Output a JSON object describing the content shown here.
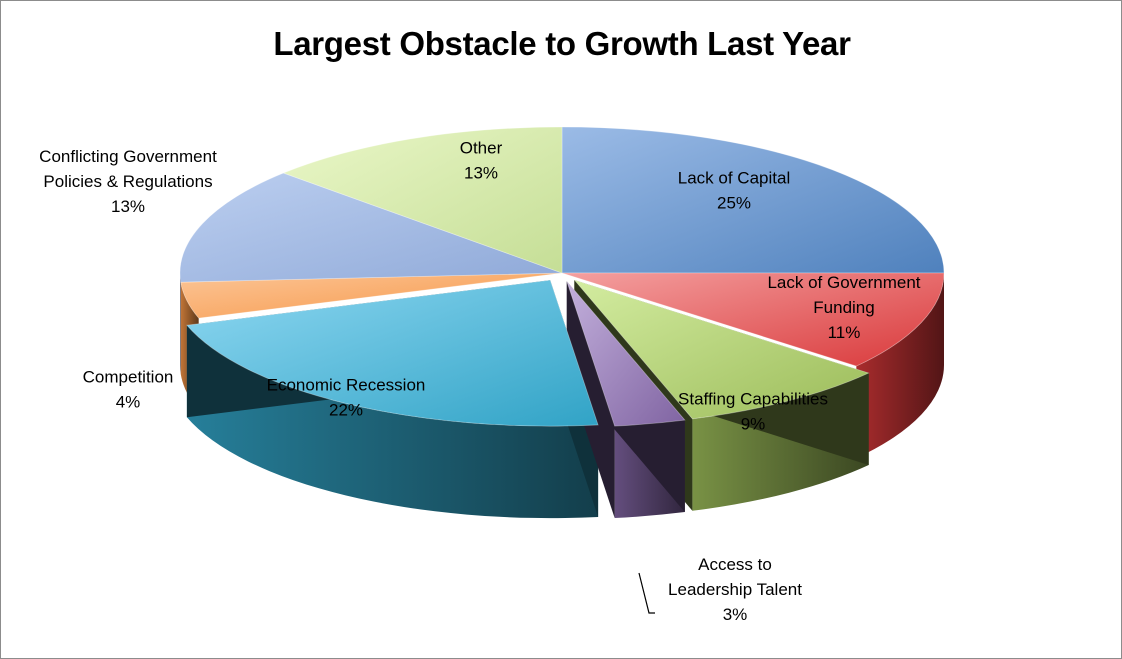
{
  "chart_data": {
    "type": "pie",
    "title": "Largest Obstacle to Growth Last Year",
    "series": [
      {
        "name": "",
        "values": [
          25,
          11,
          9,
          3,
          22,
          4,
          13,
          13
        ]
      }
    ],
    "slices": [
      {
        "label": [
          "Lack of Capital"
        ],
        "value": 25,
        "pct_text": "25%",
        "color": "#4f81bd",
        "light": "#9bbbe6"
      },
      {
        "label": [
          "Lack of Government",
          "Funding"
        ],
        "value": 11,
        "pct_text": "11%",
        "color": "#d9383a",
        "light": "#f4a0a0"
      },
      {
        "label": [
          "Staffing Capabilities"
        ],
        "value": 9,
        "pct_text": "9%",
        "color": "#9bbb59",
        "light": "#d3eca0"
      },
      {
        "label": [
          "Access to",
          "Leadership Talent"
        ],
        "value": 3,
        "pct_text": "3%",
        "color": "#8064a2",
        "light": "#c3b0dc"
      },
      {
        "label": [
          "Economic Recession"
        ],
        "value": 22,
        "pct_text": "22%",
        "color": "#31a3c6",
        "light": "#8fd8f2"
      },
      {
        "label": [
          "Competition"
        ],
        "value": 4,
        "pct_text": "4%",
        "color": "#f79646",
        "light": "#fbc596"
      },
      {
        "label": [
          "Conflicting Government",
          "Policies & Regulations"
        ],
        "value": 13,
        "pct_text": "13%",
        "color": "#8fa9d8",
        "light": "#bccff0"
      },
      {
        "label": [
          "Other"
        ],
        "value": 13,
        "pct_text": "13%",
        "color": "#c5de96",
        "light": "#eaf7c8"
      }
    ],
    "legend": "none",
    "style": "3d-exploded-pie"
  }
}
